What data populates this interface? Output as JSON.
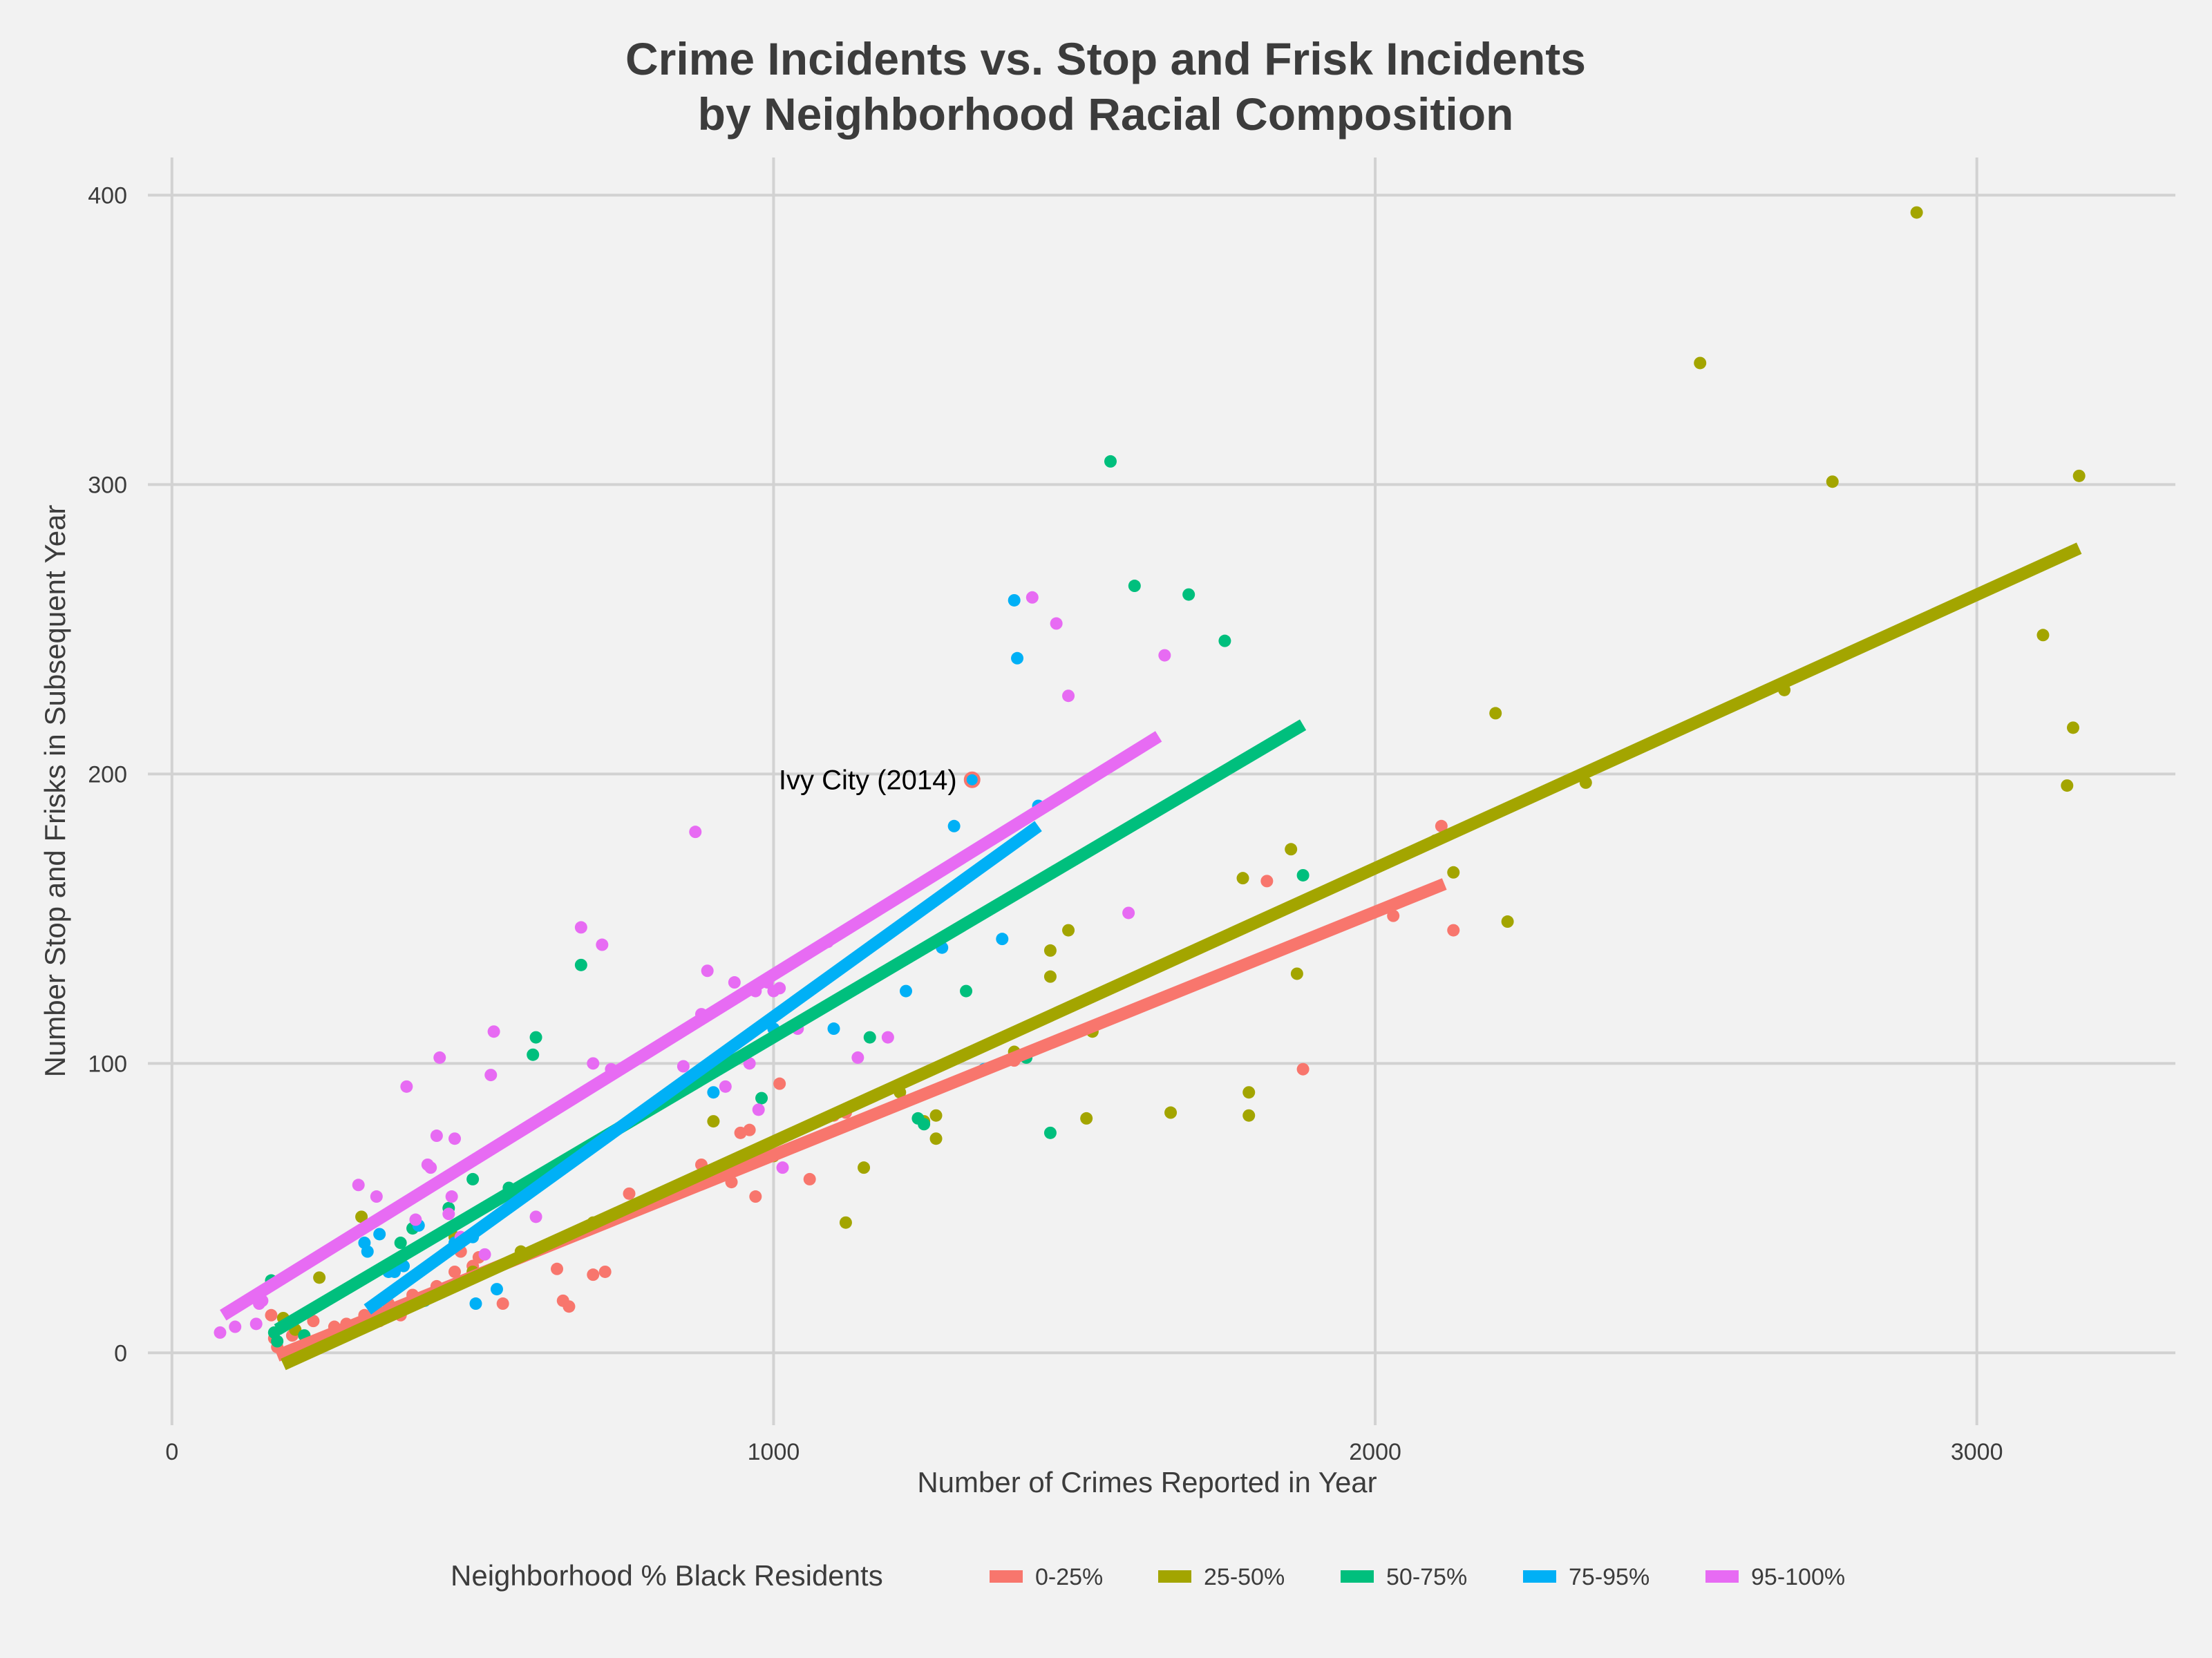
{
  "chart_data": {
    "type": "scatter",
    "title": [
      "Crime Incidents vs. Stop and Frisk Incidents",
      "by Neighborhood Racial Composition"
    ],
    "xlabel": "Number of Crimes Reported in Year",
    "ylabel": "Number Stop and Frisks in Subsequent Year",
    "xlim": [
      -40,
      3330
    ],
    "ylim": [
      -25,
      413
    ],
    "x_ticks": [
      0,
      1000,
      2000,
      3000
    ],
    "y_ticks": [
      0,
      100,
      200,
      300,
      400
    ],
    "grid": true,
    "legend": {
      "title": "Neighborhood % Black Residents",
      "position": "bottom"
    },
    "series": [
      {
        "name": "0-25%",
        "color": "#f8766d",
        "points": [
          [
            165,
            13
          ],
          [
            170,
            5
          ],
          [
            175,
            2
          ],
          [
            200,
            6
          ],
          [
            225,
            14
          ],
          [
            235,
            11
          ],
          [
            255,
            3
          ],
          [
            270,
            9
          ],
          [
            290,
            10
          ],
          [
            305,
            8
          ],
          [
            320,
            13
          ],
          [
            345,
            11
          ],
          [
            360,
            17
          ],
          [
            380,
            13
          ],
          [
            400,
            20
          ],
          [
            440,
            23
          ],
          [
            470,
            28
          ],
          [
            480,
            35
          ],
          [
            500,
            30
          ],
          [
            510,
            33
          ],
          [
            550,
            17
          ],
          [
            600,
            35
          ],
          [
            640,
            29
          ],
          [
            650,
            18
          ],
          [
            660,
            16
          ],
          [
            700,
            27
          ],
          [
            720,
            28
          ],
          [
            760,
            55
          ],
          [
            880,
            65
          ],
          [
            930,
            59
          ],
          [
            945,
            76
          ],
          [
            960,
            77
          ],
          [
            970,
            54
          ],
          [
            1010,
            93
          ],
          [
            1060,
            60
          ],
          [
            1100,
            82
          ],
          [
            1120,
            83
          ],
          [
            1400,
            101
          ],
          [
            1820,
            163
          ],
          [
            1880,
            98
          ],
          [
            2030,
            151
          ],
          [
            2110,
            182
          ],
          [
            2130,
            146
          ]
        ],
        "fit": [
          [
            175,
            -1
          ],
          [
            2115,
            162
          ]
        ]
      },
      {
        "name": "25-50%",
        "color": "#a3a500",
        "points": [
          [
            185,
            12
          ],
          [
            205,
            8
          ],
          [
            245,
            26
          ],
          [
            315,
            47
          ],
          [
            470,
            40
          ],
          [
            500,
            28
          ],
          [
            580,
            35
          ],
          [
            700,
            45
          ],
          [
            900,
            80
          ],
          [
            1000,
            68
          ],
          [
            1120,
            45
          ],
          [
            1150,
            64
          ],
          [
            1210,
            90
          ],
          [
            1250,
            80
          ],
          [
            1270,
            82
          ],
          [
            1270,
            74
          ],
          [
            1400,
            104
          ],
          [
            1460,
            139
          ],
          [
            1460,
            130
          ],
          [
            1490,
            146
          ],
          [
            1520,
            81
          ],
          [
            1530,
            111
          ],
          [
            1660,
            83
          ],
          [
            1780,
            164
          ],
          [
            1790,
            90
          ],
          [
            1790,
            82
          ],
          [
            1860,
            174
          ],
          [
            1870,
            131
          ],
          [
            2100,
            177
          ],
          [
            2130,
            166
          ],
          [
            2200,
            221
          ],
          [
            2220,
            149
          ],
          [
            2350,
            197
          ],
          [
            2540,
            342
          ],
          [
            2680,
            229
          ],
          [
            2760,
            301
          ],
          [
            2900,
            394
          ],
          [
            3110,
            248
          ],
          [
            3150,
            196
          ],
          [
            3160,
            216
          ],
          [
            3170,
            303
          ]
        ],
        "fit": [
          [
            185,
            -4
          ],
          [
            3170,
            278
          ]
        ]
      },
      {
        "name": "50-75%",
        "color": "#00bf7d",
        "points": [
          [
            165,
            25
          ],
          [
            170,
            7
          ],
          [
            175,
            4
          ],
          [
            220,
            6
          ],
          [
            380,
            38
          ],
          [
            400,
            43
          ],
          [
            460,
            50
          ],
          [
            500,
            60
          ],
          [
            560,
            57
          ],
          [
            600,
            103
          ],
          [
            605,
            109
          ],
          [
            680,
            134
          ],
          [
            800,
            86
          ],
          [
            860,
            93
          ],
          [
            900,
            97
          ],
          [
            980,
            88
          ],
          [
            1160,
            109
          ],
          [
            1240,
            81
          ],
          [
            1250,
            79
          ],
          [
            1320,
            125
          ],
          [
            1420,
            102
          ],
          [
            1460,
            76
          ],
          [
            1560,
            308
          ],
          [
            1600,
            265
          ],
          [
            1690,
            262
          ],
          [
            1750,
            246
          ],
          [
            1880,
            165
          ]
        ],
        "fit": [
          [
            175,
            8
          ],
          [
            1880,
            217
          ]
        ]
      },
      {
        "name": "75-95%",
        "color": "#00b0f6",
        "points": [
          [
            320,
            38
          ],
          [
            325,
            35
          ],
          [
            345,
            41
          ],
          [
            360,
            28
          ],
          [
            370,
            28
          ],
          [
            385,
            30
          ],
          [
            410,
            44
          ],
          [
            420,
            18
          ],
          [
            460,
            22
          ],
          [
            470,
            38
          ],
          [
            500,
            40
          ],
          [
            505,
            17
          ],
          [
            540,
            22
          ],
          [
            900,
            90
          ],
          [
            1000,
            112
          ],
          [
            1100,
            112
          ],
          [
            1220,
            125
          ],
          [
            1280,
            140
          ],
          [
            1300,
            182
          ],
          [
            1350,
            98
          ],
          [
            1380,
            143
          ],
          [
            1400,
            260
          ],
          [
            1405,
            240
          ],
          [
            1440,
            189
          ]
        ],
        "fit": [
          [
            325,
            15
          ],
          [
            1440,
            182
          ]
        ]
      },
      {
        "name": "95-100%",
        "color": "#e76bf3",
        "points": [
          [
            80,
            7
          ],
          [
            105,
            9
          ],
          [
            140,
            10
          ],
          [
            145,
            17
          ],
          [
            150,
            18
          ],
          [
            310,
            58
          ],
          [
            340,
            54
          ],
          [
            390,
            92
          ],
          [
            405,
            46
          ],
          [
            425,
            65
          ],
          [
            430,
            64
          ],
          [
            440,
            75
          ],
          [
            445,
            102
          ],
          [
            460,
            48
          ],
          [
            465,
            54
          ],
          [
            470,
            74
          ],
          [
            480,
            40
          ],
          [
            520,
            34
          ],
          [
            530,
            96
          ],
          [
            535,
            111
          ],
          [
            605,
            47
          ],
          [
            680,
            147
          ],
          [
            700,
            100
          ],
          [
            715,
            141
          ],
          [
            730,
            98
          ],
          [
            850,
            99
          ],
          [
            870,
            180
          ],
          [
            880,
            117
          ],
          [
            890,
            132
          ],
          [
            920,
            92
          ],
          [
            935,
            128
          ],
          [
            960,
            100
          ],
          [
            970,
            125
          ],
          [
            975,
            84
          ],
          [
            990,
            128
          ],
          [
            1000,
            125
          ],
          [
            1010,
            126
          ],
          [
            1015,
            64
          ],
          [
            1040,
            112
          ],
          [
            1090,
            142
          ],
          [
            1140,
            102
          ],
          [
            1190,
            109
          ],
          [
            1430,
            261
          ],
          [
            1470,
            252
          ],
          [
            1490,
            227
          ],
          [
            1590,
            152
          ],
          [
            1650,
            241
          ]
        ],
        "fit": [
          [
            85,
            13
          ],
          [
            1640,
            213
          ]
        ]
      }
    ],
    "annotations": [
      {
        "text": "Ivy City (2014)",
        "x": 1330,
        "y": 198,
        "series": "75-95%",
        "outline_color": "#f8766d"
      }
    ]
  }
}
